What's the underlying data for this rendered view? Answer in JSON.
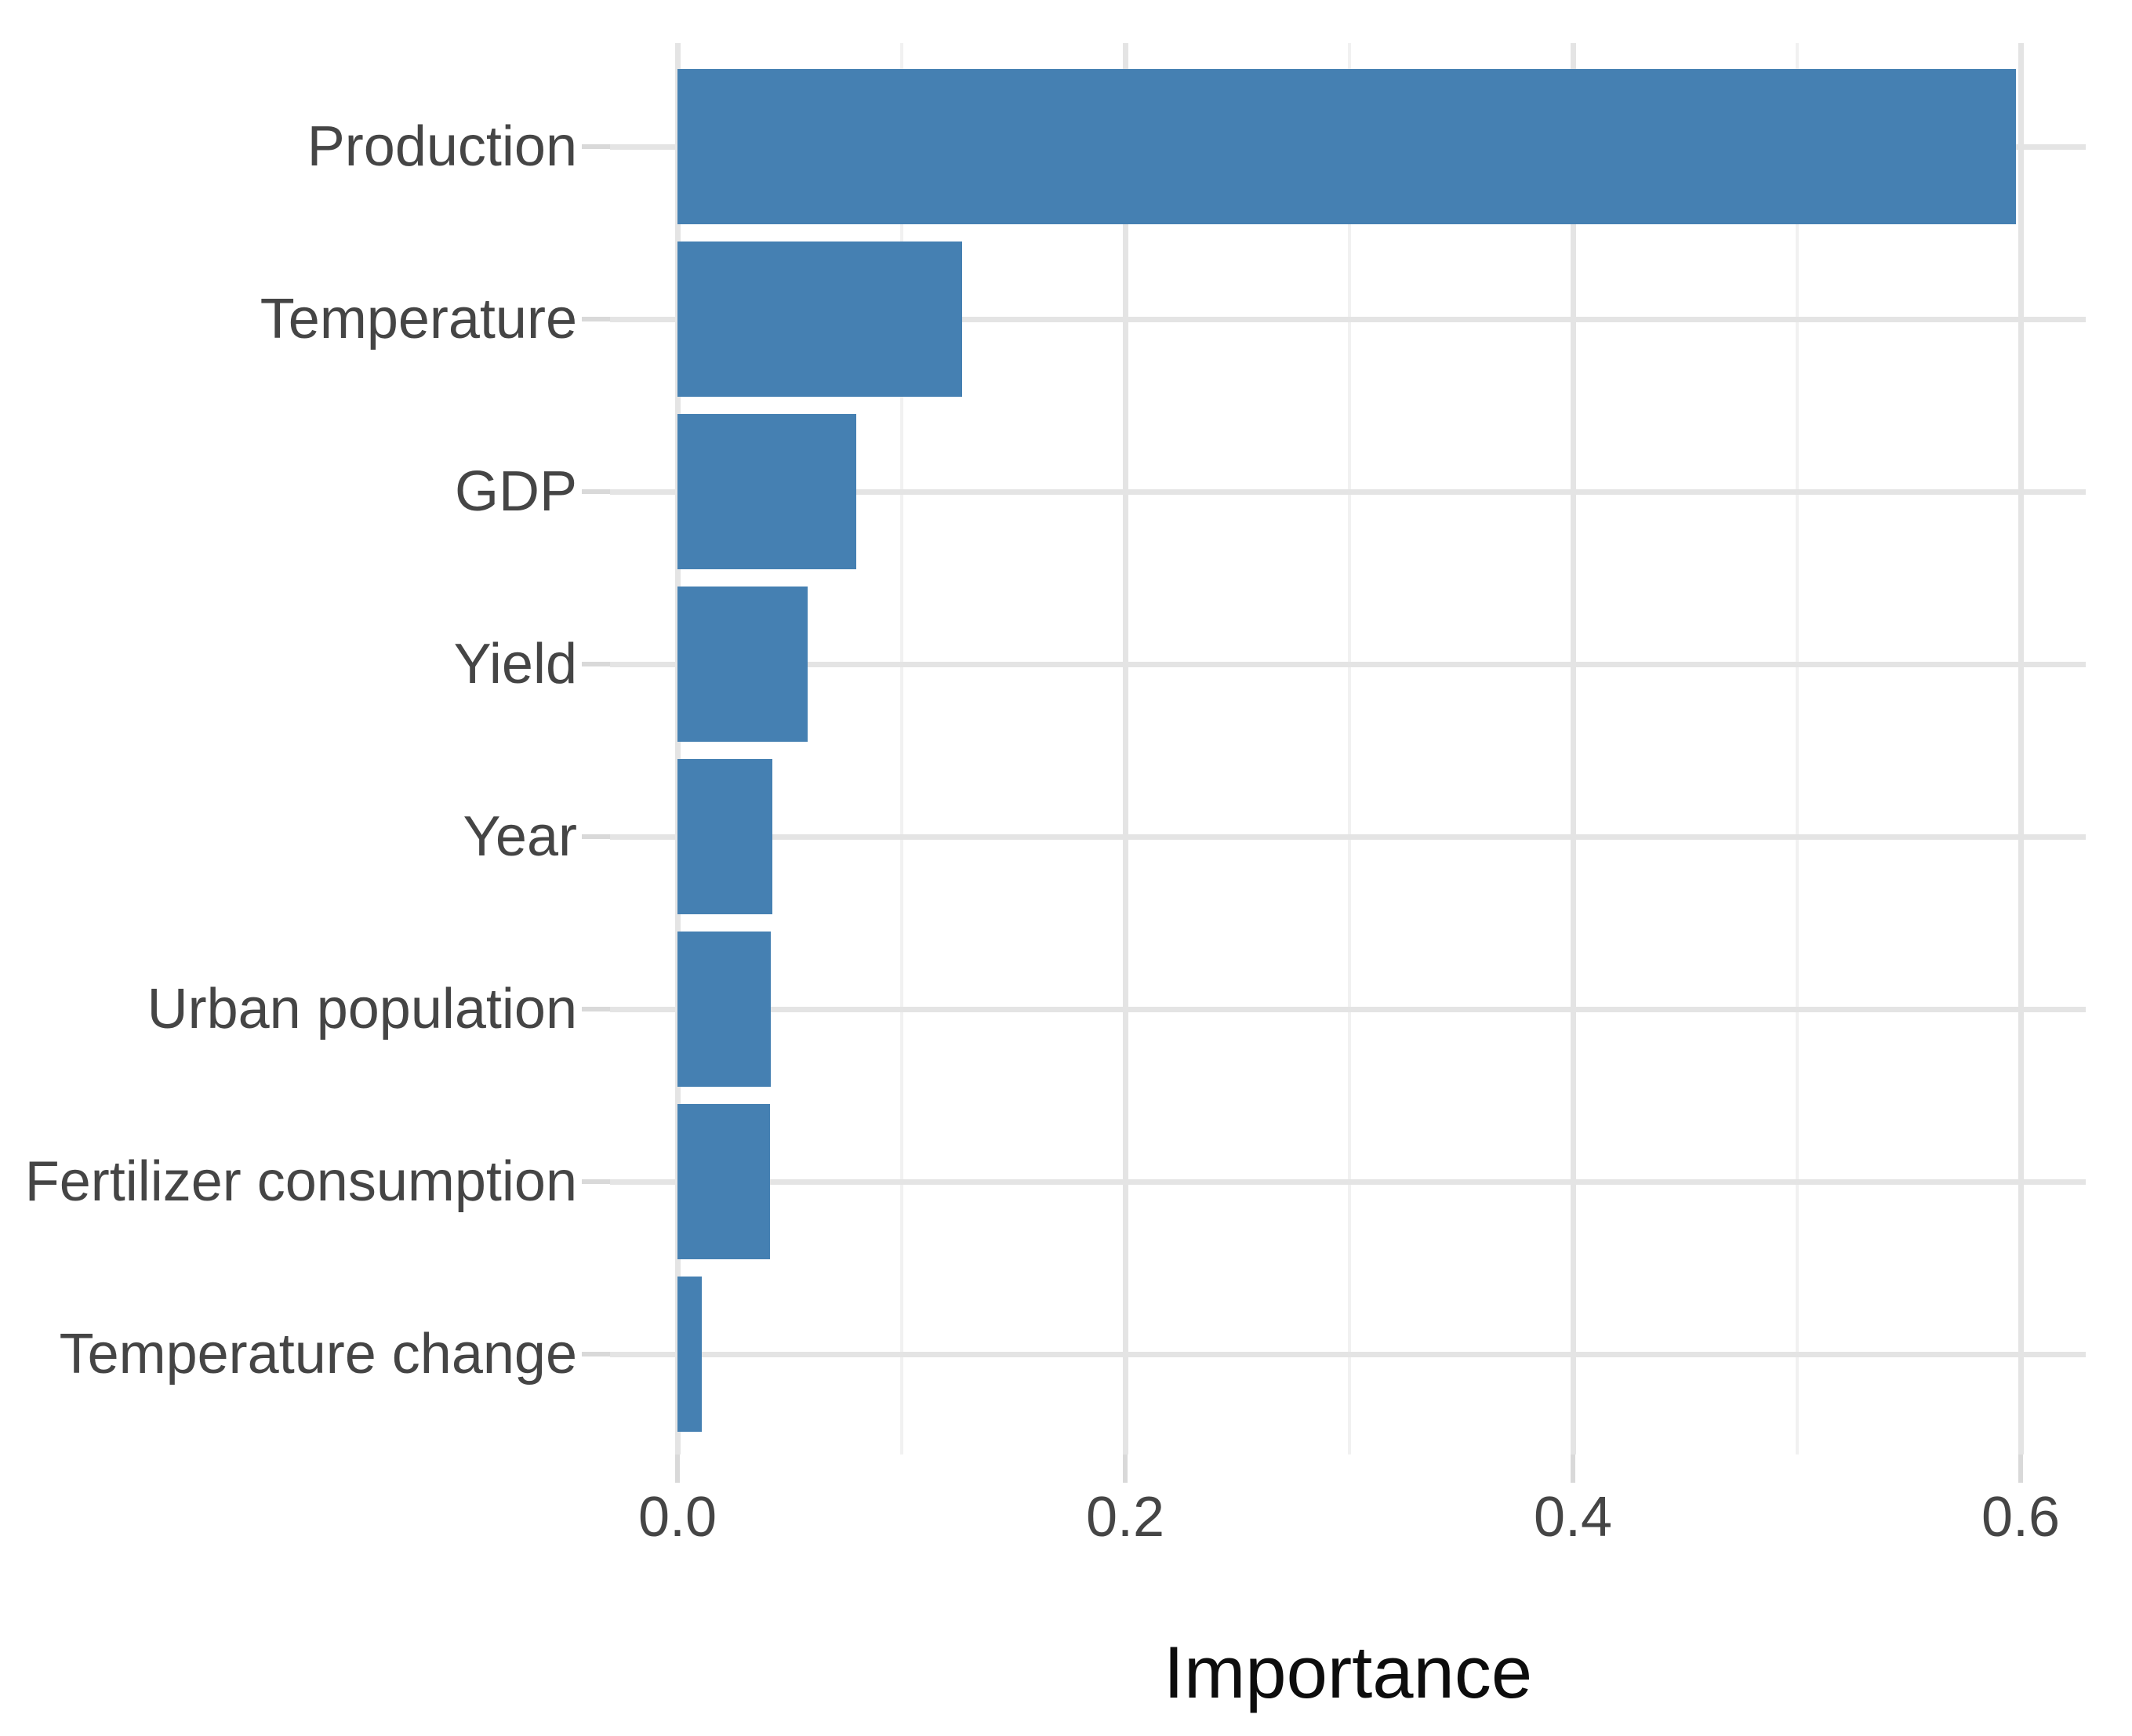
{
  "chart_data": {
    "type": "bar",
    "orientation": "horizontal",
    "title": "",
    "xlabel": "Importance",
    "ylabel": "",
    "categories": [
      "Production",
      "Temperature",
      "GDP",
      "Yield",
      "Year",
      "Urban population",
      "Fertilizer consumption",
      "Temperature change"
    ],
    "values": [
      0.598,
      0.127,
      0.08,
      0.058,
      0.0424,
      0.0417,
      0.0413,
      0.011
    ],
    "xlim": [
      0,
      0.6
    ],
    "x_ticks": [
      0.0,
      0.2,
      0.4,
      0.6
    ],
    "x_tick_labels": [
      "0.0",
      "0.2",
      "0.4",
      "0.6"
    ],
    "x_minor_ticks": [
      0.1,
      0.3,
      0.5
    ],
    "grid": "major and minor vertical, major horizontal per category",
    "legend": false,
    "colors": {
      "bar": "#4580B2",
      "major_grid": "#E4E4E4",
      "minor_grid": "#F1F1F1",
      "tick_mark": "#D9D9D9",
      "axis_text": "#454545",
      "axis_title": "#0D0D0D",
      "background": "#FFFFFF"
    }
  }
}
